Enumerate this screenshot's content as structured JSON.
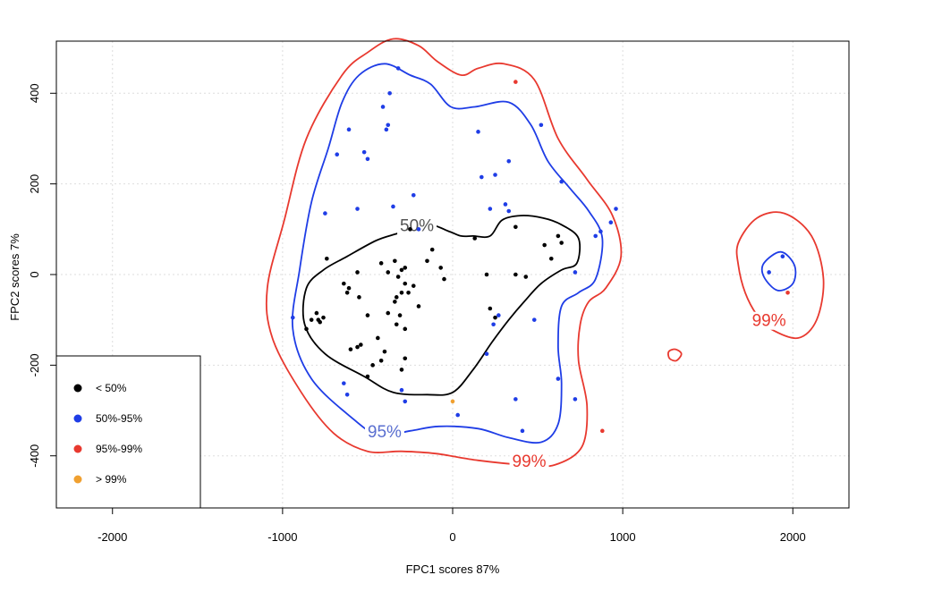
{
  "chart_data": {
    "type": "scatter",
    "xlabel": "FPC1 scores 87%",
    "ylabel": "FPC2 scores 7%",
    "xlim": [
      -2330,
      2330
    ],
    "ylim": [
      -515,
      515
    ],
    "x_ticks": [
      "-2000",
      "-1000",
      "0",
      "1000",
      "2000"
    ],
    "y_ticks": [
      "-400",
      "-200",
      "0",
      "200",
      "400"
    ],
    "grid": true,
    "legend_position": "bottom-left",
    "legend": [
      {
        "label": "< 50%",
        "color": "#000000"
      },
      {
        "label": "50%-95%",
        "color": "#1f3de6"
      },
      {
        "label": "95%-99%",
        "color": "#e8392f"
      },
      {
        "label": "> 99%",
        "color": "#f0a030"
      }
    ],
    "contour_labels": [
      {
        "text": "50%",
        "x": -210,
        "y": 100,
        "color": "#555555"
      },
      {
        "text": "95%",
        "x": -400,
        "y": -355,
        "color": "#5a6fd0"
      },
      {
        "text": "99%",
        "x": 450,
        "y": -420,
        "color": "#e8392f"
      },
      {
        "text": "99%",
        "x": 1860,
        "y": -110,
        "color": "#e8392f"
      }
    ],
    "contours": [
      {
        "level": "50%",
        "color": "#000000",
        "closed": true,
        "points": [
          [
            -330,
            90
          ],
          [
            -150,
            110
          ],
          [
            -20,
            95
          ],
          [
            50,
            85
          ],
          [
            120,
            85
          ],
          [
            220,
            85
          ],
          [
            290,
            120
          ],
          [
            400,
            130
          ],
          [
            530,
            125
          ],
          [
            640,
            110
          ],
          [
            740,
            80
          ],
          [
            730,
            25
          ],
          [
            640,
            10
          ],
          [
            520,
            -20
          ],
          [
            420,
            -60
          ],
          [
            330,
            -100
          ],
          [
            230,
            -150
          ],
          [
            120,
            -210
          ],
          [
            0,
            -260
          ],
          [
            -150,
            -265
          ],
          [
            -350,
            -260
          ],
          [
            -520,
            -225
          ],
          [
            -750,
            -175
          ],
          [
            -870,
            -110
          ],
          [
            -860,
            -30
          ],
          [
            -760,
            10
          ],
          [
            -620,
            40
          ],
          [
            -450,
            75
          ]
        ]
      },
      {
        "level": "95%",
        "color": "#1f3de6",
        "closed": true,
        "points": [
          [
            -550,
            440
          ],
          [
            -400,
            465
          ],
          [
            -250,
            440
          ],
          [
            -130,
            420
          ],
          [
            -10,
            370
          ],
          [
            130,
            370
          ],
          [
            330,
            380
          ],
          [
            460,
            330
          ],
          [
            560,
            250
          ],
          [
            690,
            190
          ],
          [
            800,
            140
          ],
          [
            880,
            80
          ],
          [
            840,
            -10
          ],
          [
            740,
            -40
          ],
          [
            640,
            -70
          ],
          [
            620,
            -160
          ],
          [
            640,
            -240
          ],
          [
            620,
            -330
          ],
          [
            520,
            -370
          ],
          [
            330,
            -360
          ],
          [
            150,
            -340
          ],
          [
            -80,
            -335
          ],
          [
            -250,
            -345
          ],
          [
            -430,
            -355
          ],
          [
            -580,
            -320
          ],
          [
            -830,
            -230
          ],
          [
            -940,
            -120
          ],
          [
            -900,
            10
          ],
          [
            -830,
            160
          ],
          [
            -730,
            280
          ],
          [
            -650,
            380
          ]
        ]
      },
      {
        "level": "95%",
        "color": "#1f3de6",
        "closed": true,
        "points": [
          [
            1830,
            25
          ],
          [
            1930,
            50
          ],
          [
            2010,
            20
          ],
          [
            2000,
            -20
          ],
          [
            1910,
            -35
          ],
          [
            1830,
            -5
          ]
        ]
      },
      {
        "level": "99%",
        "color": "#e8392f",
        "closed": true,
        "points": [
          [
            -650,
            440
          ],
          [
            -500,
            490
          ],
          [
            -350,
            520
          ],
          [
            -200,
            505
          ],
          [
            -90,
            470
          ],
          [
            50,
            440
          ],
          [
            150,
            455
          ],
          [
            300,
            465
          ],
          [
            480,
            430
          ],
          [
            620,
            300
          ],
          [
            790,
            210
          ],
          [
            940,
            130
          ],
          [
            990,
            40
          ],
          [
            900,
            -30
          ],
          [
            800,
            -60
          ],
          [
            750,
            -110
          ],
          [
            740,
            -190
          ],
          [
            790,
            -290
          ],
          [
            760,
            -380
          ],
          [
            600,
            -420
          ],
          [
            420,
            -420
          ],
          [
            150,
            -410
          ],
          [
            -100,
            -395
          ],
          [
            -300,
            -390
          ],
          [
            -500,
            -390
          ],
          [
            -700,
            -350
          ],
          [
            -890,
            -260
          ],
          [
            -1060,
            -140
          ],
          [
            -1090,
            -30
          ],
          [
            -990,
            120
          ],
          [
            -860,
            300
          ]
        ]
      },
      {
        "level": "99%",
        "color": "#e8392f",
        "closed": true,
        "points": [
          [
            1680,
            70
          ],
          [
            1790,
            125
          ],
          [
            1950,
            135
          ],
          [
            2110,
            85
          ],
          [
            2180,
            -10
          ],
          [
            2140,
            -100
          ],
          [
            2030,
            -140
          ],
          [
            1870,
            -120
          ],
          [
            1790,
            -90
          ],
          [
            1720,
            -40
          ],
          [
            1680,
            20
          ]
        ]
      },
      {
        "level": "99%",
        "color": "#e8392f",
        "closed": true,
        "points": [
          [
            1270,
            -170
          ],
          [
            1310,
            -165
          ],
          [
            1345,
            -175
          ],
          [
            1315,
            -190
          ],
          [
            1275,
            -185
          ]
        ]
      }
    ],
    "series": [
      {
        "group": "< 50%",
        "color": "#000000",
        "points": [
          [
            -740,
            35
          ],
          [
            -620,
            -40
          ],
          [
            -560,
            5
          ],
          [
            -610,
            -30
          ],
          [
            -550,
            -50
          ],
          [
            -640,
            -20
          ],
          [
            -800,
            -85
          ],
          [
            -790,
            -100
          ],
          [
            -830,
            -100
          ],
          [
            -780,
            -105
          ],
          [
            -760,
            -95
          ],
          [
            -860,
            -120
          ],
          [
            -540,
            -155
          ],
          [
            -600,
            -165
          ],
          [
            -560,
            -160
          ],
          [
            -500,
            -90
          ],
          [
            -440,
            -140
          ],
          [
            -470,
            -200
          ],
          [
            -500,
            -225
          ],
          [
            -420,
            -190
          ],
          [
            -400,
            -170
          ],
          [
            -380,
            -85
          ],
          [
            -330,
            -110
          ],
          [
            -310,
            -90
          ],
          [
            -280,
            -120
          ],
          [
            -340,
            -60
          ],
          [
            -330,
            -50
          ],
          [
            -320,
            -5
          ],
          [
            -280,
            -20
          ],
          [
            -260,
            -40
          ],
          [
            -300,
            -40
          ],
          [
            -230,
            -25
          ],
          [
            -380,
            5
          ],
          [
            -420,
            25
          ],
          [
            -340,
            30
          ],
          [
            -300,
            10
          ],
          [
            -280,
            15
          ],
          [
            -150,
            30
          ],
          [
            -200,
            -70
          ],
          [
            -50,
            -10
          ],
          [
            -70,
            15
          ],
          [
            -280,
            -185
          ],
          [
            -300,
            -210
          ],
          [
            -250,
            100
          ],
          [
            -120,
            55
          ],
          [
            130,
            80
          ],
          [
            200,
            0
          ],
          [
            370,
            0
          ],
          [
            370,
            105
          ],
          [
            430,
            -5
          ],
          [
            540,
            65
          ],
          [
            580,
            35
          ],
          [
            620,
            85
          ],
          [
            640,
            70
          ],
          [
            220,
            -75
          ],
          [
            250,
            -95
          ]
        ]
      },
      {
        "group": "50%-95%",
        "color": "#1f3de6",
        "points": [
          [
            -320,
            455
          ],
          [
            -370,
            400
          ],
          [
            -380,
            330
          ],
          [
            -390,
            320
          ],
          [
            -410,
            370
          ],
          [
            -520,
            270
          ],
          [
            -500,
            255
          ],
          [
            -610,
            320
          ],
          [
            -680,
            265
          ],
          [
            -750,
            135
          ],
          [
            -560,
            145
          ],
          [
            -350,
            150
          ],
          [
            -230,
            175
          ],
          [
            -200,
            100
          ],
          [
            150,
            315
          ],
          [
            170,
            215
          ],
          [
            250,
            220
          ],
          [
            330,
            250
          ],
          [
            520,
            330
          ],
          [
            640,
            205
          ],
          [
            220,
            145
          ],
          [
            310,
            155
          ],
          [
            330,
            140
          ],
          [
            930,
            115
          ],
          [
            960,
            145
          ],
          [
            840,
            85
          ],
          [
            870,
            95
          ],
          [
            720,
            5
          ],
          [
            480,
            -100
          ],
          [
            240,
            -110
          ],
          [
            270,
            -90
          ],
          [
            200,
            -175
          ],
          [
            -300,
            -255
          ],
          [
            -280,
            -280
          ],
          [
            -640,
            -240
          ],
          [
            -620,
            -265
          ],
          [
            -940,
            -95
          ],
          [
            30,
            -310
          ],
          [
            370,
            -275
          ],
          [
            410,
            -345
          ],
          [
            620,
            -230
          ],
          [
            720,
            -275
          ],
          [
            1860,
            5
          ],
          [
            1940,
            40
          ]
        ]
      },
      {
        "group": "95%-99%",
        "color": "#e8392f",
        "points": [
          [
            370,
            425
          ],
          [
            1970,
            -40
          ],
          [
            880,
            -345
          ]
        ]
      },
      {
        "group": "> 99%",
        "color": "#f0a030",
        "points": [
          [
            0,
            -280
          ]
        ]
      }
    ]
  }
}
